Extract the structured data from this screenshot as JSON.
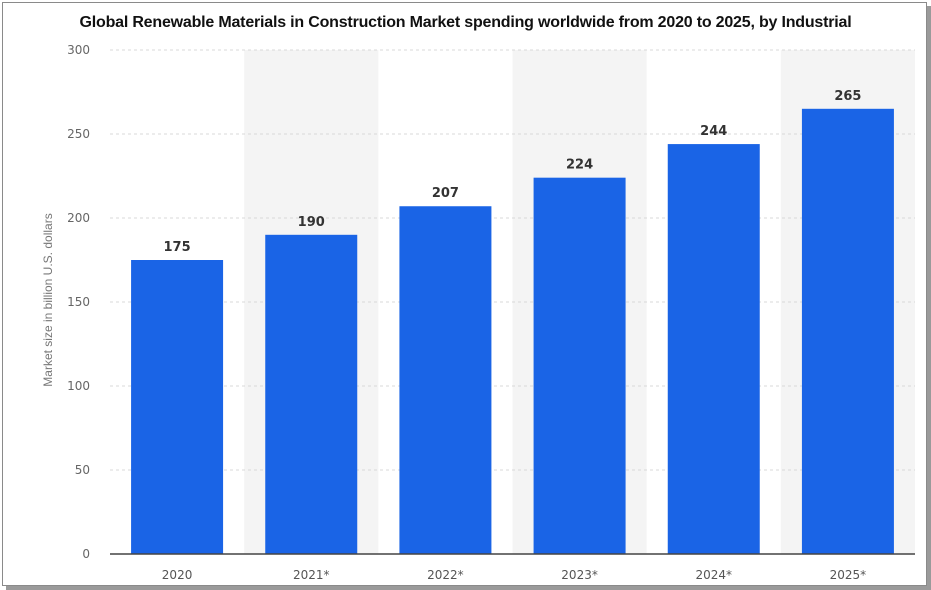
{
  "chart_data": {
    "type": "bar",
    "title": "Global Renewable Materials in Construction Market spending worldwide from 2020 to 2025, by Industrial",
    "xlabel": "",
    "ylabel": "Market size in billion U.S. dollars",
    "categories": [
      "2020",
      "2021*",
      "2022*",
      "2023*",
      "2024*",
      "2025*"
    ],
    "values": [
      175,
      190,
      207,
      224,
      244,
      265
    ],
    "data_labels": [
      "175",
      "190",
      "207",
      "224",
      "244",
      "265"
    ],
    "ylim": [
      0,
      300
    ],
    "yticks": [
      "0",
      "50",
      "100",
      "150",
      "200",
      "250",
      "300"
    ],
    "grid": true,
    "bar_color": "#1a64e6"
  }
}
